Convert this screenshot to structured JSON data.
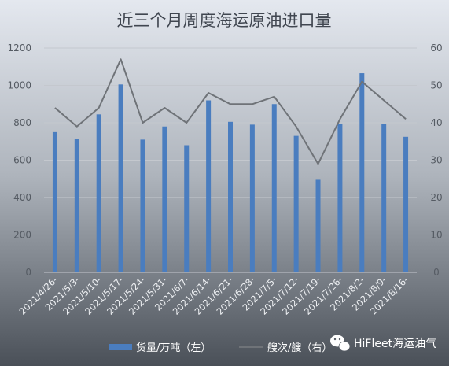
{
  "chart_data": {
    "type": "bar",
    "title": "近三个月周度海运原油进口量",
    "categories": [
      "2021/4/26-",
      "2021/5/3-",
      "2021/5/10-",
      "2021/5/17-",
      "2021/5/24-",
      "2021/5/31-",
      "2021/6/7-",
      "2021/6/14-",
      "2021/6/21-",
      "2021/6/28-",
      "2021/7/5-",
      "2021/7/12-",
      "2021/7/19-",
      "2021/7/26-",
      "2021/8/2-",
      "2021/8/9-",
      "2021/8/16-"
    ],
    "series": [
      {
        "name": "货量/万吨（左）",
        "type": "bar",
        "axis": "left",
        "color": "#4a7dbf",
        "values": [
          750,
          715,
          845,
          1005,
          710,
          780,
          680,
          920,
          805,
          790,
          900,
          730,
          495,
          795,
          1065,
          795,
          725
        ]
      },
      {
        "name": "艘次/艘（右）",
        "type": "line",
        "axis": "right",
        "color": "#6f7378",
        "values": [
          44,
          39,
          44,
          57,
          40,
          44,
          40,
          48,
          45,
          45,
          47,
          39,
          29,
          41,
          51,
          46,
          41
        ]
      }
    ],
    "yleft": {
      "ylim": [
        0,
        1200
      ],
      "ticks": [
        "0",
        "200",
        "400",
        "600",
        "800",
        "1000",
        "1200"
      ]
    },
    "yright": {
      "ylim": [
        0,
        60
      ],
      "ticks": [
        "0",
        "10",
        "20",
        "30",
        "40",
        "50",
        "60"
      ]
    },
    "grid": true,
    "legend": "bottom"
  },
  "watermark": {
    "text": "HiFleet海运油气",
    "icon": "wechat-icon"
  }
}
